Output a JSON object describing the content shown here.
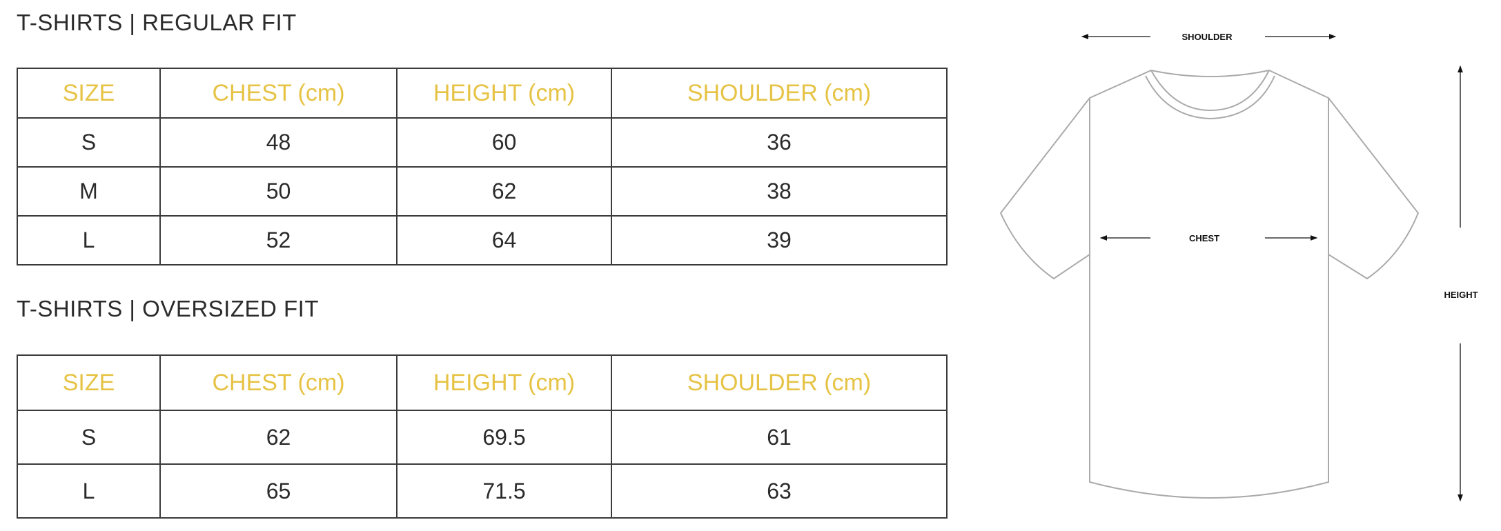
{
  "accent_color": "#e6c345",
  "regular": {
    "title": "T-SHIRTS | REGULAR FIT",
    "headers": [
      "SIZE",
      "CHEST (cm)",
      "HEIGHT (cm)",
      "SHOULDER (cm)"
    ],
    "rows": [
      [
        "S",
        "48",
        "60",
        "36"
      ],
      [
        "M",
        "50",
        "62",
        "38"
      ],
      [
        "L",
        "52",
        "64",
        "39"
      ]
    ]
  },
  "oversized": {
    "title": "T-SHIRTS | OVERSIZED FIT",
    "headers": [
      "SIZE",
      "CHEST (cm)",
      "HEIGHT (cm)",
      "SHOULDER (cm)"
    ],
    "rows": [
      [
        "S",
        "62",
        "69.5",
        "61"
      ],
      [
        "L",
        "65",
        "71.5",
        "63"
      ]
    ]
  },
  "diagram": {
    "shoulder_label": "SHOULDER",
    "chest_label": "CHEST",
    "height_label": "HEIGHT"
  }
}
